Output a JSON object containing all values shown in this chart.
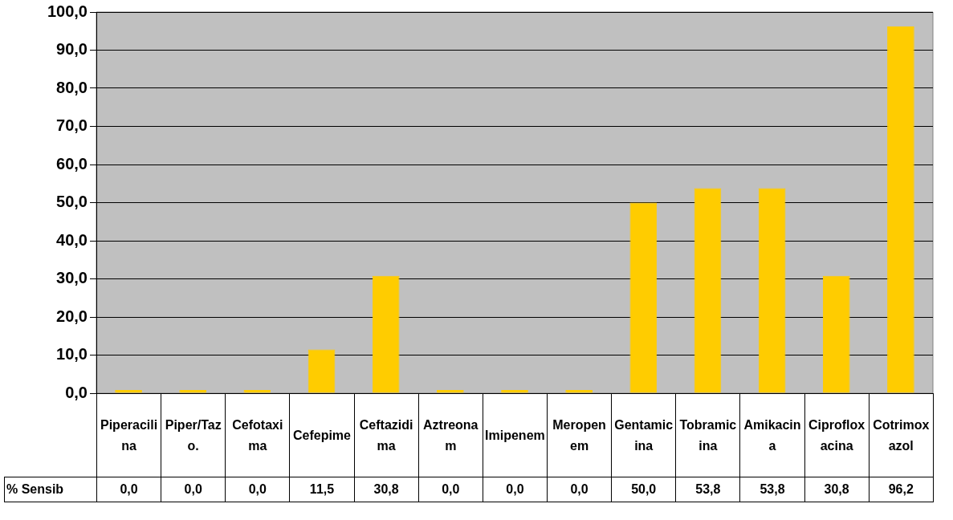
{
  "chart_data": {
    "type": "bar",
    "categories": [
      "Piperacilina",
      "Piper/Tazo.",
      "Cefotaxima",
      "Cefepime",
      "Ceftazidima",
      "Aztreonam",
      "Imipenem",
      "Meropenem",
      "Gentamicina",
      "Tobramicina",
      "Amikacina",
      "Ciprofloxacina",
      "Cotrimoxazol"
    ],
    "series": [
      {
        "name": "% Sensib",
        "color": "#ffcc00",
        "values": [
          0.0,
          0.0,
          0.0,
          11.5,
          30.8,
          0.0,
          0.0,
          0.0,
          50.0,
          53.8,
          53.8,
          30.8,
          96.2
        ],
        "value_labels": [
          "0,0",
          "0,0",
          "0,0",
          "11,5",
          "30,8",
          "0,0",
          "0,0",
          "0,0",
          "50,0",
          "53,8",
          "53,8",
          "30,8",
          "96,2"
        ]
      }
    ],
    "ylim": [
      0,
      100
    ],
    "yticks": [
      {
        "value": 0,
        "label": "0,0"
      },
      {
        "value": 10,
        "label": "10,0"
      },
      {
        "value": 20,
        "label": "20,0"
      },
      {
        "value": 30,
        "label": "30,0"
      },
      {
        "value": 40,
        "label": "40,0"
      },
      {
        "value": 50,
        "label": "50,0"
      },
      {
        "value": 60,
        "label": "60,0"
      },
      {
        "value": 70,
        "label": "70,0"
      },
      {
        "value": 80,
        "label": "80,0"
      },
      {
        "value": 90,
        "label": "90,0"
      },
      {
        "value": 100,
        "label": "100,0"
      }
    ],
    "grid": "y",
    "legend": false
  }
}
